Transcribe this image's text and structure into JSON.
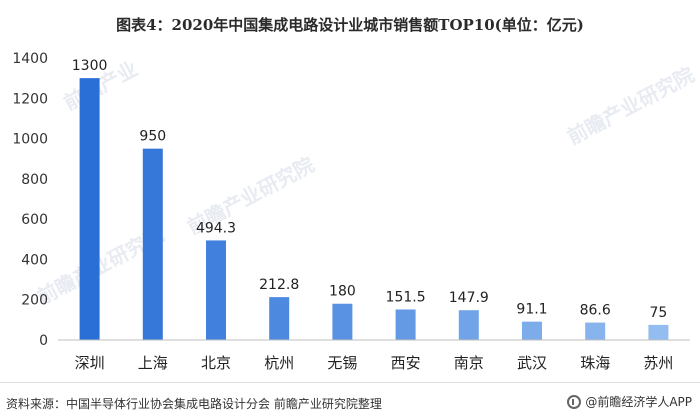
{
  "title": "图表4：2020年中国集成电路设计业城市销售额TOP10(单位：亿元)",
  "source": "资料来源：中国半导体行业协会集成电路设计分会 前瞻产业研究院整理",
  "brand": "@前瞻经济学人APP",
  "colors": {
    "bar_dark": "#2a6fd6",
    "bar_light": "#93bdf0",
    "axis": "#bfbfbf"
  },
  "chart_data": {
    "type": "bar",
    "title": "图表4：2020年中国集成电路设计业城市销售额TOP10(单位：亿元)",
    "categories": [
      "深圳",
      "上海",
      "北京",
      "杭州",
      "无锡",
      "西安",
      "南京",
      "武汉",
      "珠海",
      "苏州"
    ],
    "values": [
      1300,
      950,
      494.3,
      212.8,
      180,
      151.5,
      147.9,
      91.1,
      86.6,
      75
    ],
    "value_labels": [
      "1300",
      "950",
      "494.3",
      "212.8",
      "180",
      "151.5",
      "147.9",
      "91.1",
      "86.6",
      "75"
    ],
    "yticks": [
      "0",
      "200",
      "400",
      "600",
      "800",
      "1000",
      "1200",
      "1400"
    ],
    "ylim": [
      0,
      1400
    ],
    "grid": false,
    "legend": "none"
  }
}
